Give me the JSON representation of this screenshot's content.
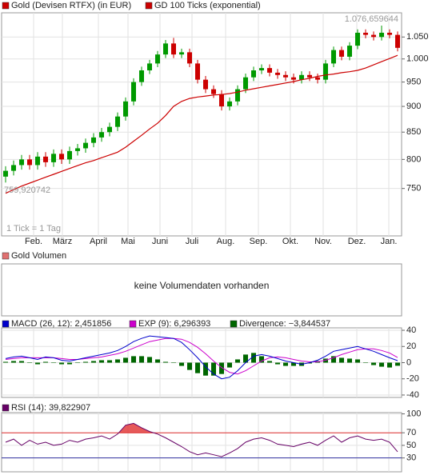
{
  "chart_data": [
    {
      "type": "candlestick",
      "log": true,
      "grid": true,
      "series": [
        {
          "name": "Gold (Devisen RTFX) (in EUR)",
          "color": "#cc0000",
          "up_color": "#009900",
          "down_color": "#cc0000"
        },
        {
          "name": "GD 100 Ticks (exponential)",
          "color": "#cc0000",
          "values": [
            742,
            748,
            754,
            759,
            764,
            769,
            774,
            779,
            784,
            789,
            794,
            798,
            803,
            808,
            813,
            822,
            833,
            844,
            856,
            867,
            882,
            900,
            910,
            916,
            919,
            921,
            923,
            924,
            926,
            929,
            933,
            936,
            939,
            942,
            945,
            948,
            951,
            955,
            958,
            962,
            965,
            967,
            970,
            972,
            975,
            980,
            987,
            994,
            1001,
            1008
          ]
        }
      ],
      "x": [
        0,
        1,
        2,
        3,
        4,
        5,
        6,
        7,
        8,
        9,
        10,
        11,
        12,
        13,
        14,
        15,
        16,
        17,
        18,
        19,
        20,
        21,
        22,
        23,
        24,
        25,
        26,
        27,
        28,
        29,
        30,
        31,
        32,
        33,
        34,
        35,
        36,
        37,
        38,
        39,
        40,
        41,
        42,
        43,
        44,
        45,
        46,
        47,
        48,
        49
      ],
      "open": [
        770,
        780,
        790,
        800,
        790,
        805,
        795,
        810,
        800,
        815,
        820,
        830,
        840,
        850,
        860,
        880,
        910,
        950,
        975,
        990,
        1010,
        1035,
        1010,
        1015,
        990,
        955,
        935,
        925,
        900,
        910,
        935,
        960,
        975,
        980,
        970,
        965,
        960,
        955,
        965,
        960,
        955,
        990,
        1020,
        1005,
        1030,
        1060,
        1055,
        1050,
        1060,
        1055
      ],
      "high": [
        788,
        798,
        808,
        808,
        813,
        813,
        818,
        818,
        823,
        828,
        838,
        848,
        858,
        868,
        888,
        918,
        958,
        983,
        998,
        1018,
        1043,
        1048,
        1023,
        1023,
        998,
        963,
        943,
        933,
        918,
        943,
        968,
        983,
        988,
        988,
        978,
        973,
        968,
        973,
        973,
        968,
        998,
        1028,
        1028,
        1038,
        1068,
        1068,
        1063,
        1077,
        1068,
        1063
      ],
      "low": [
        760,
        772,
        782,
        782,
        782,
        787,
        787,
        792,
        792,
        807,
        812,
        822,
        832,
        842,
        852,
        872,
        902,
        942,
        967,
        982,
        1002,
        1002,
        1002,
        982,
        947,
        927,
        917,
        892,
        892,
        902,
        927,
        952,
        967,
        962,
        957,
        952,
        947,
        947,
        952,
        947,
        947,
        982,
        997,
        997,
        1022,
        1047,
        1042,
        1042,
        1047,
        1017
      ],
      "close": [
        780,
        790,
        800,
        790,
        805,
        795,
        810,
        800,
        815,
        820,
        830,
        840,
        850,
        860,
        880,
        910,
        950,
        975,
        990,
        1010,
        1035,
        1010,
        1015,
        990,
        955,
        935,
        925,
        900,
        910,
        935,
        960,
        975,
        980,
        970,
        965,
        960,
        955,
        965,
        960,
        955,
        990,
        1020,
        1005,
        1030,
        1060,
        1055,
        1050,
        1060,
        1055,
        1025
      ],
      "xlim": [
        -0.5,
        49.5
      ],
      "xticks": [
        {
          "value": 3.5,
          "label": "Feb."
        },
        {
          "value": 7.1,
          "label": "März"
        },
        {
          "value": 11.6,
          "label": "April"
        },
        {
          "value": 15.3,
          "label": "Mai"
        },
        {
          "value": 19.3,
          "label": "Juni"
        },
        {
          "value": 23.3,
          "label": "Juli"
        },
        {
          "value": 27.5,
          "label": "Aug."
        },
        {
          "value": 31.6,
          "label": "Sep."
        },
        {
          "value": 35.6,
          "label": "Okt."
        },
        {
          "value": 39.7,
          "label": "Nov."
        },
        {
          "value": 43.9,
          "label": "Dez."
        },
        {
          "value": 47.9,
          "label": "Jan."
        }
      ],
      "ylim": [
        675,
        1108
      ],
      "yticks": [
        {
          "value": 1050,
          "label": "1.050"
        },
        {
          "value": 1000,
          "label": "1.000"
        },
        950,
        900,
        850,
        800,
        750
      ],
      "annotations": [
        "1.076,659644",
        "759,920742",
        "1 Tick = 1 Tag"
      ]
    },
    {
      "type": "volume",
      "title": "Gold Volumen",
      "color": "#e07070",
      "message": "keine Volumendaten vorhanden"
    },
    {
      "type": "macd",
      "grid": true,
      "series": [
        {
          "name": "MACD (26, 12): 2,451856",
          "color": "#0000cc",
          "values": [
            5,
            7,
            8,
            6,
            4,
            7,
            6,
            3,
            2,
            4,
            6,
            8,
            10,
            12,
            15,
            20,
            26,
            30,
            33,
            32,
            31,
            30,
            25,
            16,
            6,
            -5,
            -14,
            -20,
            -18,
            -10,
            0,
            8,
            10,
            8,
            5,
            2,
            0,
            -2,
            0,
            3,
            8,
            14,
            16,
            18,
            20,
            17,
            14,
            10,
            6,
            2.451856
          ]
        },
        {
          "name": "EXP (9): 6,296393",
          "color": "#cc00cc",
          "values": [
            4,
            5,
            6,
            6,
            6,
            6,
            6,
            5,
            4,
            4,
            5,
            6,
            7,
            9,
            11,
            14,
            18,
            22,
            26,
            28,
            30,
            30,
            29,
            25,
            19,
            11,
            2,
            -6,
            -12,
            -14,
            -10,
            -4,
            2,
            6,
            7,
            6,
            4,
            2,
            1,
            1,
            3,
            6,
            10,
            13,
            16,
            17,
            17,
            15,
            12,
            6.296393
          ]
        },
        {
          "name": "Divergence: −3,844537",
          "color": "#006600",
          "values": [
            1,
            2,
            2,
            0,
            -2,
            1,
            0,
            -2,
            -2,
            0,
            1,
            2,
            3,
            3,
            4,
            6,
            8,
            8,
            7,
            4,
            1,
            0,
            -4,
            -9,
            -13,
            -16,
            -16,
            -14,
            -6,
            4,
            10,
            12,
            8,
            2,
            -2,
            -4,
            -4,
            -4,
            -1,
            2,
            5,
            8,
            6,
            5,
            4,
            0,
            -3,
            -5,
            -6,
            -3.844537
          ]
        }
      ],
      "ylim": [
        -43,
        43
      ],
      "yticks": [
        40,
        20,
        0,
        -20,
        -40
      ]
    },
    {
      "type": "rsi",
      "grid": true,
      "series": [
        {
          "name": "RSI (14): 39,822907",
          "color": "#660066",
          "values": [
            55,
            60,
            50,
            58,
            52,
            55,
            50,
            52,
            58,
            55,
            60,
            62,
            65,
            60,
            68,
            82,
            85,
            78,
            72,
            68,
            62,
            55,
            48,
            40,
            35,
            38,
            35,
            32,
            38,
            45,
            55,
            60,
            62,
            58,
            52,
            50,
            48,
            52,
            55,
            50,
            58,
            65,
            55,
            62,
            65,
            60,
            58,
            60,
            55,
            39.822907
          ]
        }
      ],
      "bands": {
        "upper": 70,
        "upper_color": "#e03030",
        "lower": 30,
        "lower_color": "#3030a0"
      },
      "ylim": [
        8,
        102
      ],
      "yticks": [
        100,
        70,
        50,
        30
      ]
    }
  ]
}
